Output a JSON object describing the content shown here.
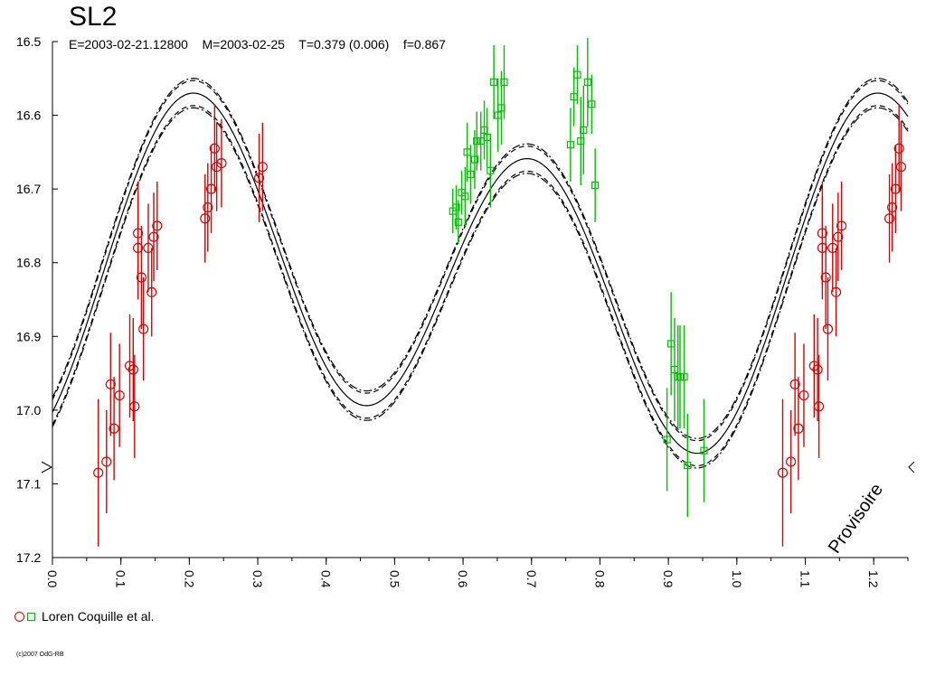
{
  "chart_data": {
    "type": "scatter",
    "title": "SL2",
    "subtitle": "E=2003-02-21.12800    M=2003-02-25    T=0.379 (0.006)    f=0.867",
    "xlim": [
      0.0,
      1.25
    ],
    "ylim": [
      16.5,
      17.2
    ],
    "y_inverted": true,
    "x_ticks": [
      "0.0",
      "0.1",
      "0.2",
      "0.3",
      "0.4",
      "0.5",
      "0.6",
      "0.7",
      "0.8",
      "0.9",
      "1.0",
      "1.1",
      "1.2"
    ],
    "y_ticks": [
      "16.5",
      "16.6",
      "16.7",
      "16.8",
      "16.9",
      "17.0",
      "17.1",
      "17.2"
    ],
    "stamp": "Provisoire",
    "legend_label": "Loren Coquille et al.",
    "copyright": "(c)2007 OdG-RB",
    "colors": {
      "red": "#e00000",
      "green": "#00c000",
      "axis": "#000000"
    },
    "model_curve": {
      "mean_mag": 16.82,
      "terms": [
        {
          "harmonic": 1,
          "amp": -0.055,
          "phase": 0.3
        },
        {
          "harmonic": 2,
          "amp": -0.205,
          "phase": 0.2
        }
      ],
      "band": 0.02
    },
    "series_red": [
      [
        0.067,
        17.085,
        0.1
      ],
      [
        0.079,
        17.07,
        0.07
      ],
      [
        0.085,
        16.965,
        0.07
      ],
      [
        0.09,
        17.025,
        0.07
      ],
      [
        0.098,
        16.98,
        0.07
      ],
      [
        0.113,
        16.94,
        0.07
      ],
      [
        0.118,
        16.945,
        0.07
      ],
      [
        0.12,
        16.995,
        0.07
      ],
      [
        0.125,
        16.76,
        0.07
      ],
      [
        0.125,
        16.78,
        0.07
      ],
      [
        0.13,
        16.82,
        0.07
      ],
      [
        0.133,
        16.89,
        0.07
      ],
      [
        0.14,
        16.78,
        0.06
      ],
      [
        0.145,
        16.84,
        0.06
      ],
      [
        0.148,
        16.765,
        0.06
      ],
      [
        0.153,
        16.75,
        0.06
      ],
      [
        0.223,
        16.74,
        0.06
      ],
      [
        0.227,
        16.725,
        0.06
      ],
      [
        0.232,
        16.7,
        0.06
      ],
      [
        0.237,
        16.645,
        0.06
      ],
      [
        0.24,
        16.67,
        0.06
      ],
      [
        0.247,
        16.665,
        0.06
      ],
      [
        0.302,
        16.685,
        0.06
      ],
      [
        0.307,
        16.67,
        0.06
      ],
      [
        1.067,
        17.085,
        0.1
      ],
      [
        1.079,
        17.07,
        0.07
      ],
      [
        1.085,
        16.965,
        0.07
      ],
      [
        1.09,
        17.025,
        0.07
      ],
      [
        1.098,
        16.98,
        0.07
      ],
      [
        1.113,
        16.94,
        0.07
      ],
      [
        1.118,
        16.945,
        0.07
      ],
      [
        1.12,
        16.995,
        0.07
      ],
      [
        1.125,
        16.76,
        0.07
      ],
      [
        1.125,
        16.78,
        0.07
      ],
      [
        1.13,
        16.82,
        0.07
      ],
      [
        1.133,
        16.89,
        0.07
      ],
      [
        1.14,
        16.78,
        0.06
      ],
      [
        1.145,
        16.84,
        0.06
      ],
      [
        1.148,
        16.765,
        0.06
      ],
      [
        1.153,
        16.75,
        0.06
      ],
      [
        1.223,
        16.74,
        0.06
      ],
      [
        1.227,
        16.725,
        0.06
      ],
      [
        1.232,
        16.7,
        0.06
      ],
      [
        1.237,
        16.645,
        0.06
      ],
      [
        1.24,
        16.67,
        0.06
      ]
    ],
    "series_green": [
      [
        0.585,
        16.73,
        0.03
      ],
      [
        0.59,
        16.725,
        0.03
      ],
      [
        0.593,
        16.745,
        0.03
      ],
      [
        0.598,
        16.705,
        0.03
      ],
      [
        0.603,
        16.71,
        0.04
      ],
      [
        0.606,
        16.65,
        0.04
      ],
      [
        0.611,
        16.68,
        0.04
      ],
      [
        0.617,
        16.66,
        0.04
      ],
      [
        0.62,
        16.635,
        0.04
      ],
      [
        0.626,
        16.635,
        0.04
      ],
      [
        0.631,
        16.62,
        0.04
      ],
      [
        0.635,
        16.63,
        0.04
      ],
      [
        0.64,
        16.675,
        0.05
      ],
      [
        0.645,
        16.555,
        0.05
      ],
      [
        0.651,
        16.6,
        0.05
      ],
      [
        0.656,
        16.59,
        0.05
      ],
      [
        0.66,
        16.555,
        0.05
      ],
      [
        0.757,
        16.64,
        0.05
      ],
      [
        0.762,
        16.575,
        0.04
      ],
      [
        0.767,
        16.545,
        0.04
      ],
      [
        0.772,
        16.635,
        0.06
      ],
      [
        0.776,
        16.62,
        0.06
      ],
      [
        0.782,
        16.555,
        0.06
      ],
      [
        0.788,
        16.585,
        0.04
      ],
      [
        0.793,
        16.695,
        0.05
      ],
      [
        0.898,
        17.04,
        0.07
      ],
      [
        0.904,
        16.91,
        0.07
      ],
      [
        0.909,
        16.945,
        0.07
      ],
      [
        0.914,
        16.955,
        0.07
      ],
      [
        0.917,
        16.955,
        0.07
      ],
      [
        0.923,
        16.955,
        0.07
      ],
      [
        0.928,
        17.075,
        0.07
      ],
      [
        0.952,
        17.055,
        0.07
      ]
    ]
  }
}
